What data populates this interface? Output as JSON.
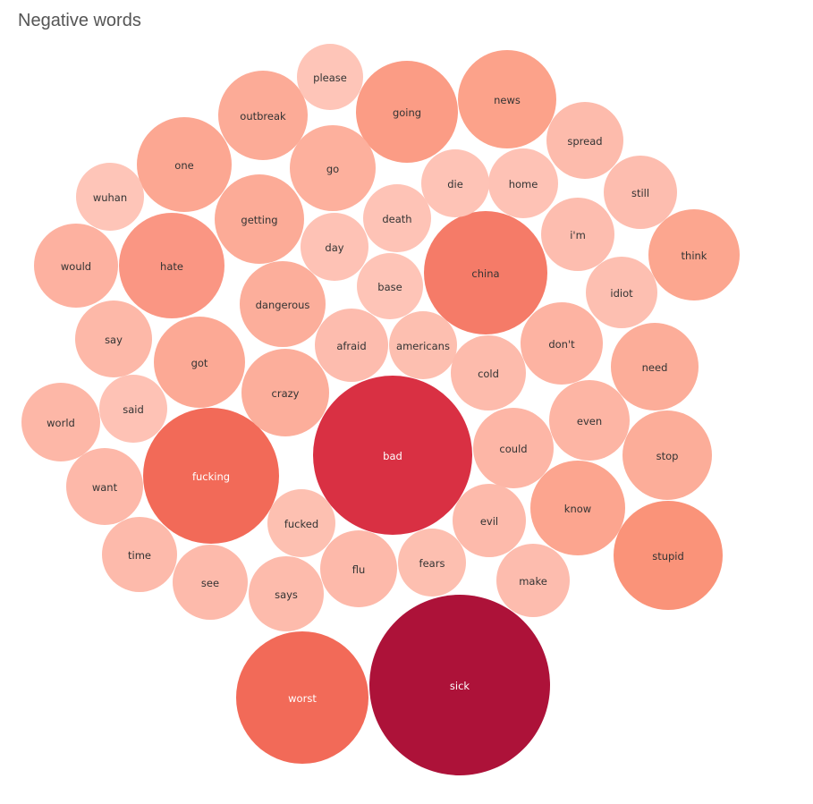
{
  "chart_data": {
    "type": "bubble",
    "title": "Negative words",
    "bubbles": [
      {
        "word": "sick",
        "size": 100,
        "color": "#AD1239"
      },
      {
        "word": "bad",
        "size": 79,
        "color": "#D93043"
      },
      {
        "word": "worst",
        "size": 55,
        "color": "#F26A58"
      },
      {
        "word": "fucking",
        "size": 55,
        "color": "#F26A58"
      },
      {
        "word": "china",
        "size": 47,
        "color": "#F57B68"
      },
      {
        "word": "stupid",
        "size": 36,
        "color": "#FA9379"
      },
      {
        "word": "hate",
        "size": 35,
        "color": "#FA9683"
      },
      {
        "word": "going",
        "size": 32,
        "color": "#FB9C85"
      },
      {
        "word": "news",
        "size": 30,
        "color": "#FCA28A"
      },
      {
        "word": "know",
        "size": 28,
        "color": "#FCA58F"
      },
      {
        "word": "think",
        "size": 27,
        "color": "#FCA68F"
      },
      {
        "word": "one",
        "size": 27,
        "color": "#FCA792"
      },
      {
        "word": "got",
        "size": 26,
        "color": "#FCA995"
      },
      {
        "word": "outbreak",
        "size": 24,
        "color": "#FCAB97"
      },
      {
        "word": "getting",
        "size": 25,
        "color": "#FCAB97"
      },
      {
        "word": "dangerous",
        "size": 23,
        "color": "#FCAE9B"
      },
      {
        "word": "need",
        "size": 24,
        "color": "#FCAD99"
      },
      {
        "word": "stop",
        "size": 24,
        "color": "#FCAD99"
      },
      {
        "word": "crazy",
        "size": 23,
        "color": "#FCAE9B"
      },
      {
        "word": "go",
        "size": 22,
        "color": "#FDB09D"
      },
      {
        "word": "would",
        "size": 21,
        "color": "#FDB1A0"
      },
      {
        "word": "don't",
        "size": 20,
        "color": "#FDB3A2"
      },
      {
        "word": "even",
        "size": 19,
        "color": "#FDB5A4"
      },
      {
        "word": "fucked",
        "size": 14,
        "color": "#FDC0B1"
      },
      {
        "word": "could",
        "size": 18,
        "color": "#FDB6A6"
      },
      {
        "word": "evil",
        "size": 16,
        "color": "#FDBAAB"
      },
      {
        "word": "say",
        "size": 17,
        "color": "#FDB8A8"
      },
      {
        "word": "world",
        "size": 18,
        "color": "#FDB7A7"
      },
      {
        "word": "want",
        "size": 17,
        "color": "#FDB8A9"
      },
      {
        "word": "time",
        "size": 16,
        "color": "#FDBAAB"
      },
      {
        "word": "see",
        "size": 16,
        "color": "#FDBAAB"
      },
      {
        "word": "says",
        "size": 16,
        "color": "#FDBBAC"
      },
      {
        "word": "flu",
        "size": 17,
        "color": "#FDB9AA"
      },
      {
        "word": "fears",
        "size": 14,
        "color": "#FDBFB0"
      },
      {
        "word": "make",
        "size": 15,
        "color": "#FDBCAE"
      },
      {
        "word": "afraid",
        "size": 15,
        "color": "#FDBCAE"
      },
      {
        "word": "americans",
        "size": 14,
        "color": "#FDBFB0"
      },
      {
        "word": "cold",
        "size": 16,
        "color": "#FDBBAC"
      },
      {
        "word": "spread",
        "size": 16,
        "color": "#FDBBAC"
      },
      {
        "word": "still",
        "size": 15,
        "color": "#FDBDAF"
      },
      {
        "word": "i'm",
        "size": 15,
        "color": "#FDBDAF"
      },
      {
        "word": "idiot",
        "size": 14,
        "color": "#FDBFB1"
      },
      {
        "word": "home",
        "size": 13,
        "color": "#FEC2B5"
      },
      {
        "word": "die",
        "size": 12,
        "color": "#FEC3B6"
      },
      {
        "word": "death",
        "size": 12,
        "color": "#FEC3B6"
      },
      {
        "word": "day",
        "size": 13,
        "color": "#FEC2B5"
      },
      {
        "word": "base",
        "size": 12,
        "color": "#FEC4B7"
      },
      {
        "word": "said",
        "size": 13,
        "color": "#FEC2B5"
      },
      {
        "word": "wuhan",
        "size": 12,
        "color": "#FEC5B8"
      },
      {
        "word": "please",
        "size": 12,
        "color": "#FEC5B8"
      }
    ]
  }
}
